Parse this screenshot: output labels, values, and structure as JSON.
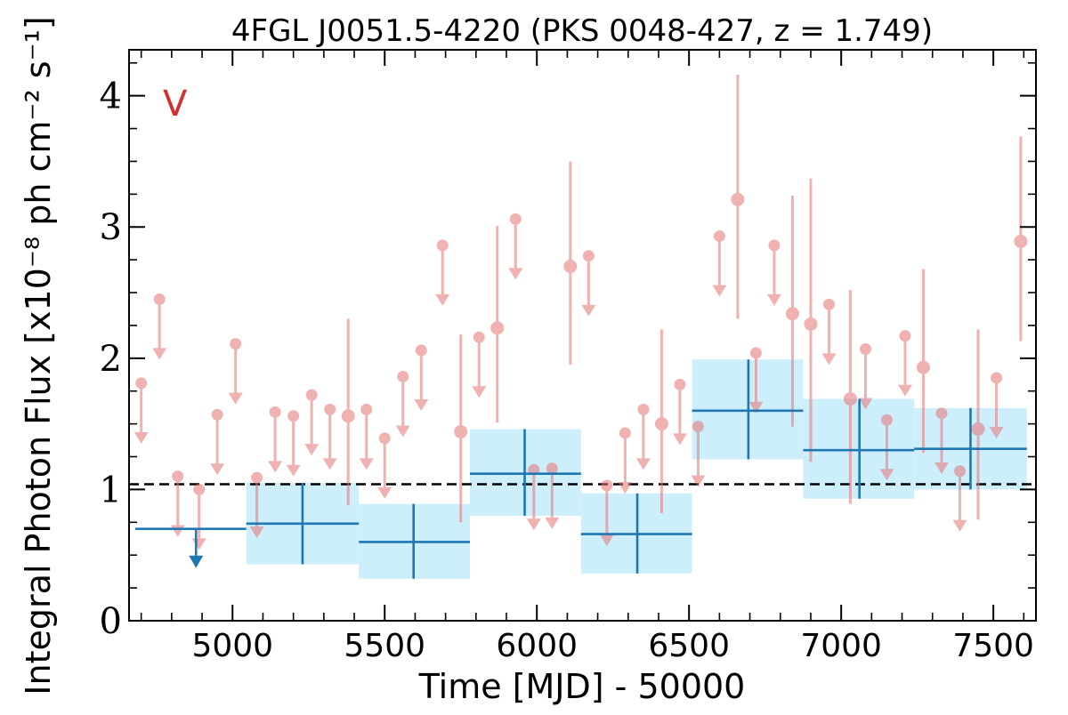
{
  "chart_data": {
    "type": "scatter",
    "title": "4FGL J0051.5-4220 (PKS 0048-427, z = 1.749)",
    "xlabel": "Time [MJD] - 50000",
    "ylabel": "Integral Photon Flux [x10⁻⁸ ph cm⁻² s⁻¹]",
    "xlim": [
      4660,
      7640
    ],
    "ylim": [
      0,
      4.35
    ],
    "x_ticks": [
      5000,
      5500,
      6000,
      6500,
      7000,
      7500
    ],
    "x_tick_labels": [
      "5000",
      "5500",
      "6000",
      "6500",
      "7000",
      "7500"
    ],
    "y_ticks": [
      0,
      1,
      2,
      3,
      4
    ],
    "y_tick_labels": [
      "0",
      "1",
      "2",
      "3",
      "4"
    ],
    "panel_label": "V",
    "reference_line": {
      "y": 1.04,
      "style": "dashed",
      "color": "#000000"
    },
    "colors": {
      "short_bins": "#e57373",
      "long_bins": "#1f77b4",
      "long_bins_band": "#cdeefb",
      "panel_label": "#d32f2f"
    },
    "series": [
      {
        "marker": "circle",
        "upper_limits": [
          {
            "x": 4700,
            "y": 1.81
          },
          {
            "x": 4760,
            "y": 2.45
          },
          {
            "x": 4820,
            "y": 1.1
          },
          {
            "x": 4890,
            "y": 1.0
          },
          {
            "x": 4950,
            "y": 1.57
          },
          {
            "x": 5010,
            "y": 2.11
          },
          {
            "x": 5080,
            "y": 1.09
          },
          {
            "x": 5140,
            "y": 1.59
          },
          {
            "x": 5200,
            "y": 1.56
          },
          {
            "x": 5260,
            "y": 1.72
          },
          {
            "x": 5320,
            "y": 1.61
          },
          {
            "x": 5440,
            "y": 1.61
          },
          {
            "x": 5500,
            "y": 1.39
          },
          {
            "x": 5560,
            "y": 1.86
          },
          {
            "x": 5620,
            "y": 2.06
          },
          {
            "x": 5690,
            "y": 2.86
          },
          {
            "x": 5810,
            "y": 2.16
          },
          {
            "x": 5930,
            "y": 3.06
          },
          {
            "x": 5990,
            "y": 1.15
          },
          {
            "x": 6050,
            "y": 1.16
          },
          {
            "x": 6170,
            "y": 2.78
          },
          {
            "x": 6230,
            "y": 1.03
          },
          {
            "x": 6290,
            "y": 1.43
          },
          {
            "x": 6350,
            "y": 1.61
          },
          {
            "x": 6470,
            "y": 1.8
          },
          {
            "x": 6530,
            "y": 1.48
          },
          {
            "x": 6600,
            "y": 2.93
          },
          {
            "x": 6720,
            "y": 2.04
          },
          {
            "x": 6780,
            "y": 2.86
          },
          {
            "x": 6960,
            "y": 2.41
          },
          {
            "x": 7080,
            "y": 2.07
          },
          {
            "x": 7150,
            "y": 1.53
          },
          {
            "x": 7210,
            "y": 2.17
          },
          {
            "x": 7330,
            "y": 1.58
          },
          {
            "x": 7390,
            "y": 1.14
          },
          {
            "x": 7510,
            "y": 1.85
          }
        ],
        "points": [
          {
            "x": 5380,
            "y": 1.56,
            "ylo": 0.88,
            "yhi": 2.3
          },
          {
            "x": 5750,
            "y": 1.44,
            "ylo": 0.75,
            "yhi": 2.18
          },
          {
            "x": 5870,
            "y": 2.23,
            "ylo": 1.51,
            "yhi": 3.01
          },
          {
            "x": 6110,
            "y": 2.7,
            "ylo": 1.95,
            "yhi": 3.5
          },
          {
            "x": 6410,
            "y": 1.5,
            "ylo": 0.82,
            "yhi": 2.22
          },
          {
            "x": 6660,
            "y": 3.21,
            "ylo": 2.3,
            "yhi": 4.16
          },
          {
            "x": 6840,
            "y": 2.34,
            "ylo": 1.48,
            "yhi": 3.24
          },
          {
            "x": 6900,
            "y": 2.26,
            "ylo": 1.21,
            "yhi": 3.37
          },
          {
            "x": 7030,
            "y": 1.69,
            "ylo": 0.89,
            "yhi": 2.52
          },
          {
            "x": 7270,
            "y": 1.93,
            "ylo": 1.28,
            "yhi": 2.68
          },
          {
            "x": 7450,
            "y": 1.46,
            "ylo": 0.77,
            "yhi": 2.22
          },
          {
            "x": 7590,
            "y": 2.89,
            "ylo": 2.13,
            "yhi": 3.69
          }
        ]
      },
      {
        "marker": "cross",
        "points": [
          {
            "x": 5230,
            "xlo": 5045,
            "xhi": 5415,
            "y": 0.74,
            "ylo": 0.43,
            "yhi": 1.05
          },
          {
            "x": 5595,
            "xlo": 5415,
            "xhi": 5780,
            "y": 0.6,
            "ylo": 0.32,
            "yhi": 0.89
          },
          {
            "x": 5960,
            "xlo": 5780,
            "xhi": 6145,
            "y": 1.12,
            "ylo": 0.8,
            "yhi": 1.46
          },
          {
            "x": 6330,
            "xlo": 6145,
            "xhi": 6510,
            "y": 0.66,
            "ylo": 0.36,
            "yhi": 0.97
          },
          {
            "x": 6695,
            "xlo": 6510,
            "xhi": 6875,
            "y": 1.6,
            "ylo": 1.23,
            "yhi": 1.99
          },
          {
            "x": 7060,
            "xlo": 6875,
            "xhi": 7240,
            "y": 1.3,
            "ylo": 0.93,
            "yhi": 1.69
          },
          {
            "x": 7425,
            "xlo": 7240,
            "xhi": 7610,
            "y": 1.31,
            "ylo": 1.0,
            "yhi": 1.62
          }
        ],
        "upper_limits": [
          {
            "x": 4880,
            "xlo": 4680,
            "xhi": 5045,
            "y": 0.7
          }
        ]
      }
    ]
  }
}
